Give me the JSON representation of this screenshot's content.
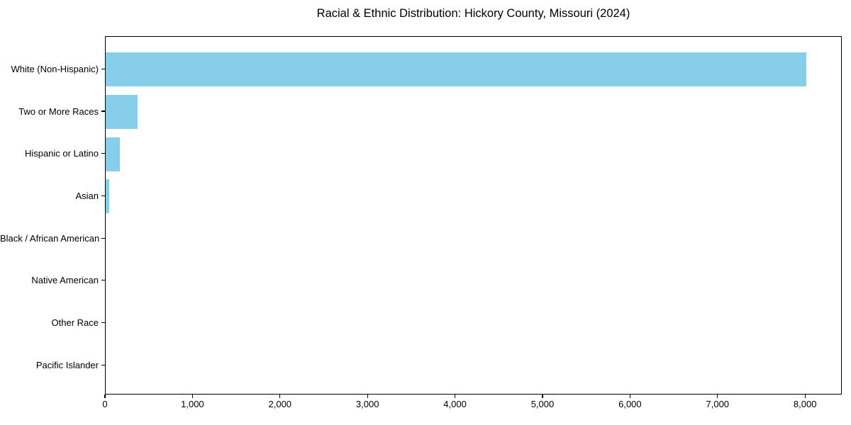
{
  "title": "Racial & Ethnic Distribution: Hickory County, Missouri (2024)",
  "chart_data": {
    "type": "bar",
    "orientation": "horizontal",
    "title": "Racial & Ethnic Distribution: Hickory County, Missouri (2024)",
    "xlabel": "",
    "ylabel": "",
    "categories": [
      "White (Non-Hispanic)",
      "Two or More Races",
      "Hispanic or Latino",
      "Asian",
      "Black / African American",
      "Native American",
      "Other Race",
      "Pacific Islander"
    ],
    "values": [
      8010,
      365,
      160,
      40,
      0,
      0,
      0,
      0
    ],
    "xlim": [
      0,
      8420
    ],
    "x_ticks": [
      0,
      1000,
      2000,
      3000,
      4000,
      5000,
      6000,
      7000,
      8000
    ],
    "x_tick_labels": [
      "0",
      "1,000",
      "2,000",
      "3,000",
      "4,000",
      "5,000",
      "6,000",
      "7,000",
      "8,000"
    ],
    "grid": false,
    "legend": null,
    "colors": {
      "bar": "#87CEEB",
      "axis": "#000000",
      "text": "#000000",
      "background": "#ffffff"
    }
  }
}
